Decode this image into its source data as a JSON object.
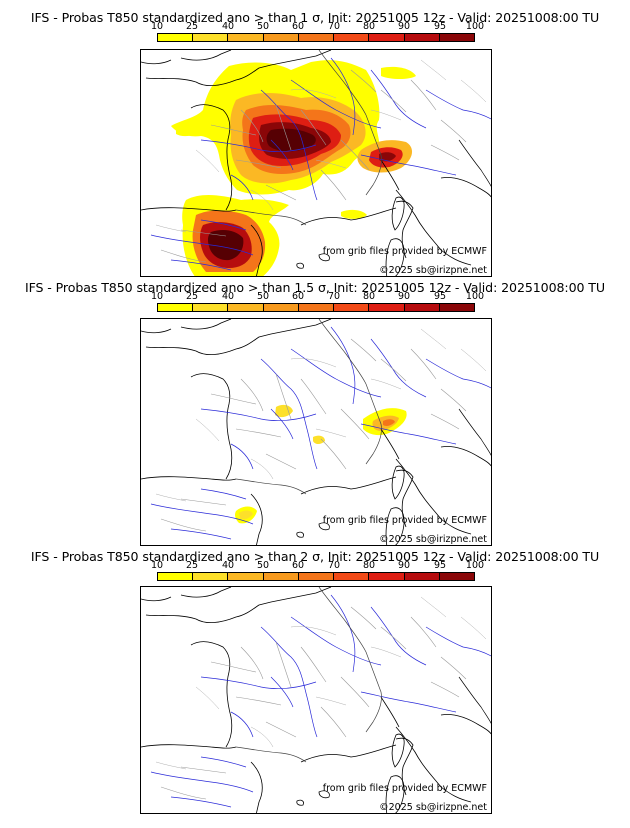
{
  "colorbar": {
    "ticks": [
      "10",
      "25",
      "40",
      "50",
      "60",
      "70",
      "80",
      "90",
      "95",
      "100"
    ],
    "colors": [
      "#ffff00",
      "#fde02a",
      "#fbb824",
      "#f79a1e",
      "#f4751a",
      "#f24a17",
      "#de1e13",
      "#b60c0e",
      "#8a0608",
      "#560003"
    ]
  },
  "credits": {
    "source": "from grib files provided by ECMWF",
    "copyright": "©2025 sb@irizpne.net"
  },
  "panels": [
    {
      "title": "IFS - Probas T850  standardized ano > than 1 σ, Init: 20251005 12z - Valid: 20251008:00 TU",
      "threshold": "1 σ"
    },
    {
      "title": "IFS - Probas T850  standardized ano > than 1.5 σ, Init: 20251005 12z - Valid: 20251008:00 TU",
      "threshold": "1.5 σ"
    },
    {
      "title": "IFS - Probas T850  standardized ano > than 2 σ, Init: 20251005 12z - Valid: 20251008:00 TU",
      "threshold": "2 σ"
    }
  ]
}
